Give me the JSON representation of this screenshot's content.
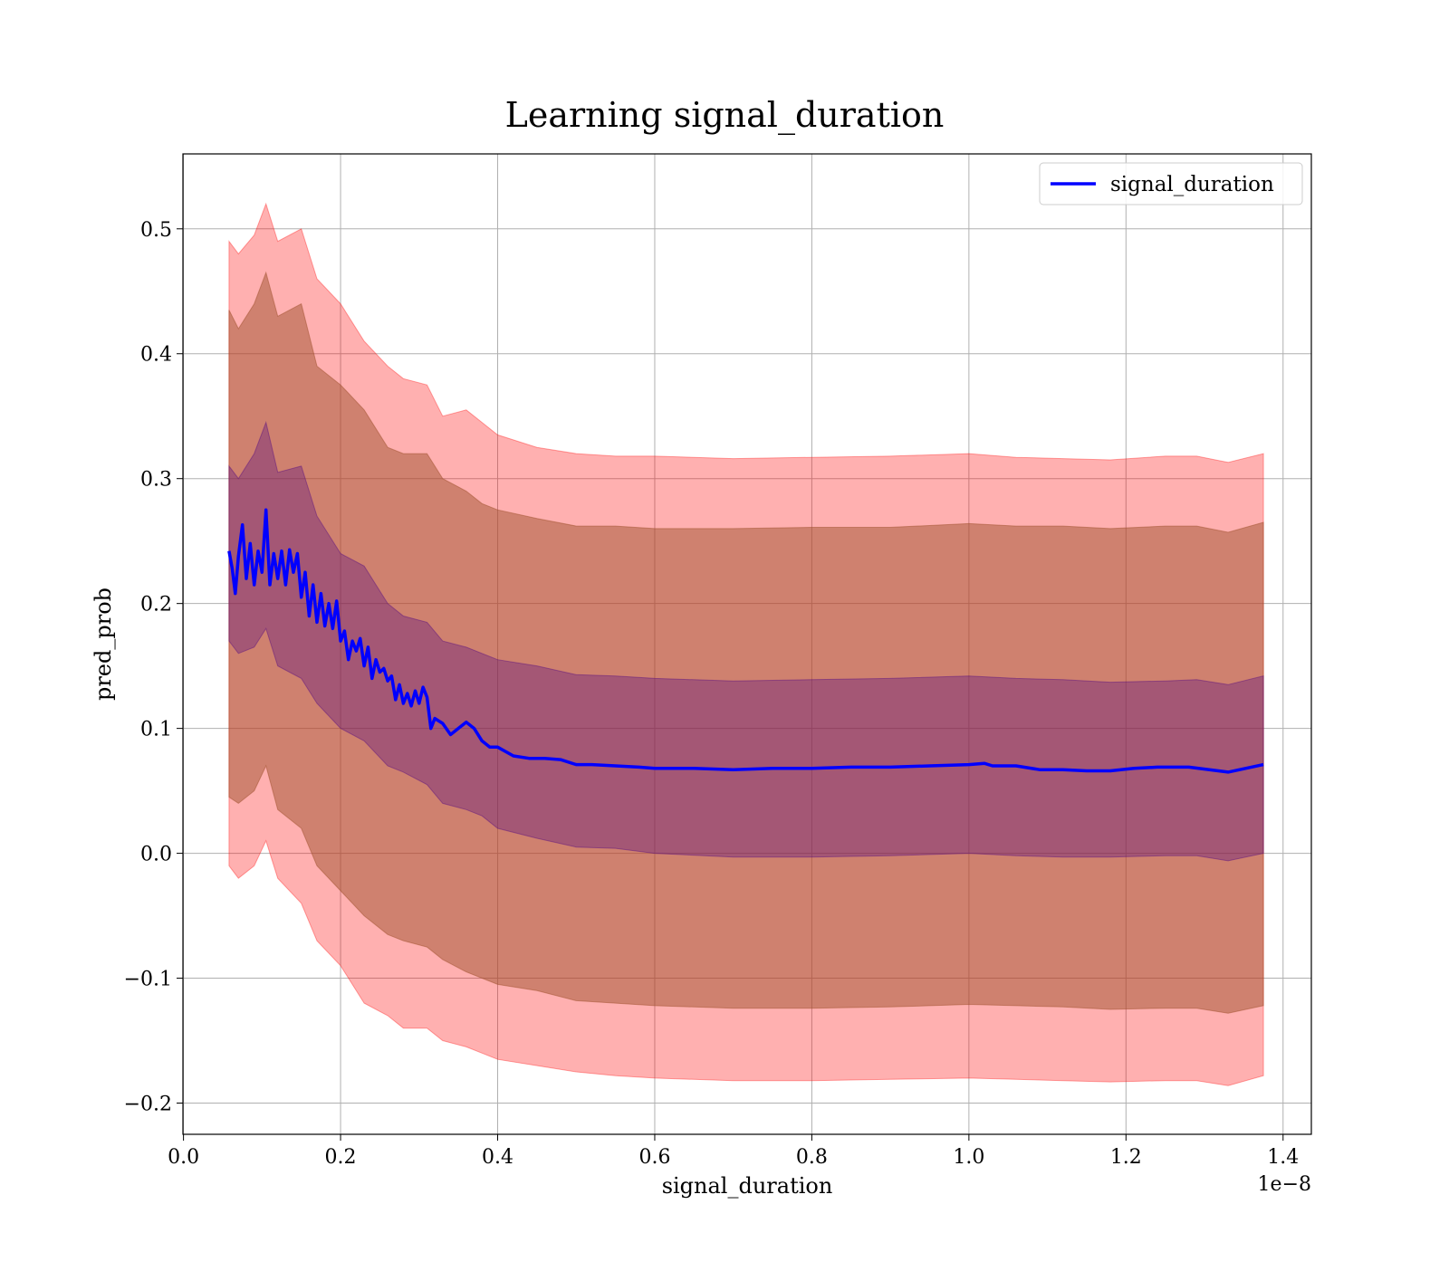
{
  "chart_data": {
    "type": "line",
    "title": "Learning signal_duration",
    "xlabel": "signal_duration",
    "ylabel": "pred_prob",
    "x_offset_label": "1e−8",
    "xlim": [
      -0.0007,
      1.436
    ],
    "ylim": [
      -0.225,
      0.56
    ],
    "grid": true,
    "legend_position": "top-right",
    "x_ticks": [
      0.0,
      0.2,
      0.4,
      0.6,
      0.8,
      1.0,
      1.2,
      1.4
    ],
    "x_tick_labels": [
      "0.0",
      "0.2",
      "0.4",
      "0.6",
      "0.8",
      "1.0",
      "1.2",
      "1.4"
    ],
    "y_ticks": [
      -0.2,
      -0.1,
      0.0,
      0.1,
      0.2,
      0.3,
      0.4,
      0.5
    ],
    "y_tick_labels": [
      "−0.2",
      "−0.1",
      "0.0",
      "0.1",
      "0.2",
      "0.3",
      "0.4",
      "0.5"
    ],
    "colors": {
      "line": "#0000ff",
      "band_2sd": "#ff0000",
      "band_1sd": "#a0522d",
      "band_inner": "#4b0082"
    },
    "series": [
      {
        "name": "signal_duration",
        "x": [
          0.058,
          0.062,
          0.066,
          0.07,
          0.075,
          0.08,
          0.085,
          0.09,
          0.095,
          0.1,
          0.105,
          0.11,
          0.115,
          0.12,
          0.125,
          0.13,
          0.135,
          0.14,
          0.145,
          0.15,
          0.155,
          0.16,
          0.165,
          0.17,
          0.175,
          0.18,
          0.185,
          0.19,
          0.195,
          0.2,
          0.205,
          0.21,
          0.215,
          0.22,
          0.225,
          0.23,
          0.235,
          0.24,
          0.245,
          0.25,
          0.255,
          0.26,
          0.265,
          0.27,
          0.275,
          0.28,
          0.285,
          0.29,
          0.295,
          0.3,
          0.305,
          0.31,
          0.315,
          0.32,
          0.33,
          0.34,
          0.35,
          0.36,
          0.37,
          0.38,
          0.39,
          0.4,
          0.42,
          0.44,
          0.46,
          0.48,
          0.5,
          0.52,
          0.55,
          0.58,
          0.6,
          0.65,
          0.7,
          0.75,
          0.8,
          0.85,
          0.9,
          0.95,
          1.0,
          1.02,
          1.03,
          1.06,
          1.09,
          1.12,
          1.15,
          1.18,
          1.21,
          1.24,
          1.28,
          1.33,
          1.375
        ],
        "y": [
          0.242,
          0.228,
          0.208,
          0.238,
          0.263,
          0.22,
          0.248,
          0.215,
          0.242,
          0.225,
          0.275,
          0.215,
          0.24,
          0.22,
          0.242,
          0.215,
          0.243,
          0.225,
          0.24,
          0.205,
          0.225,
          0.19,
          0.215,
          0.185,
          0.208,
          0.182,
          0.2,
          0.18,
          0.202,
          0.17,
          0.178,
          0.155,
          0.17,
          0.162,
          0.172,
          0.15,
          0.165,
          0.14,
          0.155,
          0.145,
          0.148,
          0.138,
          0.142,
          0.123,
          0.135,
          0.12,
          0.128,
          0.118,
          0.13,
          0.12,
          0.133,
          0.125,
          0.1,
          0.108,
          0.104,
          0.095,
          0.1,
          0.105,
          0.1,
          0.09,
          0.085,
          0.085,
          0.078,
          0.076,
          0.076,
          0.075,
          0.071,
          0.071,
          0.07,
          0.069,
          0.068,
          0.068,
          0.067,
          0.068,
          0.068,
          0.069,
          0.069,
          0.07,
          0.071,
          0.072,
          0.07,
          0.07,
          0.067,
          0.067,
          0.066,
          0.066,
          0.068,
          0.069,
          0.069,
          0.065,
          0.071
        ]
      }
    ],
    "bands": {
      "x": [
        0.058,
        0.07,
        0.09,
        0.105,
        0.12,
        0.15,
        0.17,
        0.2,
        0.23,
        0.26,
        0.28,
        0.31,
        0.33,
        0.36,
        0.38,
        0.4,
        0.45,
        0.5,
        0.55,
        0.6,
        0.7,
        0.8,
        0.9,
        1.0,
        1.06,
        1.12,
        1.18,
        1.25,
        1.29,
        1.33,
        1.375
      ],
      "band_2sd_upper": [
        0.49,
        0.48,
        0.495,
        0.52,
        0.49,
        0.5,
        0.46,
        0.44,
        0.41,
        0.39,
        0.38,
        0.375,
        0.35,
        0.355,
        0.345,
        0.335,
        0.325,
        0.32,
        0.318,
        0.318,
        0.316,
        0.317,
        0.318,
        0.32,
        0.317,
        0.316,
        0.315,
        0.318,
        0.318,
        0.313,
        0.32
      ],
      "band_1sd_upper": [
        0.435,
        0.42,
        0.44,
        0.465,
        0.43,
        0.44,
        0.39,
        0.375,
        0.355,
        0.325,
        0.32,
        0.32,
        0.3,
        0.29,
        0.28,
        0.275,
        0.268,
        0.262,
        0.262,
        0.26,
        0.26,
        0.261,
        0.261,
        0.264,
        0.262,
        0.262,
        0.26,
        0.262,
        0.262,
        0.257,
        0.265
      ],
      "band_inner_upper": [
        0.31,
        0.3,
        0.32,
        0.345,
        0.305,
        0.31,
        0.27,
        0.24,
        0.23,
        0.2,
        0.19,
        0.185,
        0.17,
        0.165,
        0.16,
        0.155,
        0.15,
        0.143,
        0.142,
        0.14,
        0.138,
        0.139,
        0.14,
        0.142,
        0.14,
        0.139,
        0.137,
        0.138,
        0.139,
        0.135,
        0.142
      ],
      "band_inner_lower": [
        0.17,
        0.16,
        0.165,
        0.18,
        0.15,
        0.14,
        0.12,
        0.1,
        0.09,
        0.07,
        0.065,
        0.055,
        0.04,
        0.035,
        0.03,
        0.02,
        0.012,
        0.005,
        0.004,
        0.0,
        -0.003,
        -0.003,
        -0.002,
        0.0,
        -0.002,
        -0.003,
        -0.003,
        -0.002,
        -0.002,
        -0.006,
        0.0
      ],
      "band_1sd_lower": [
        0.045,
        0.04,
        0.05,
        0.07,
        0.035,
        0.02,
        -0.01,
        -0.03,
        -0.05,
        -0.065,
        -0.07,
        -0.075,
        -0.085,
        -0.095,
        -0.1,
        -0.105,
        -0.11,
        -0.118,
        -0.12,
        -0.122,
        -0.124,
        -0.124,
        -0.123,
        -0.121,
        -0.122,
        -0.123,
        -0.125,
        -0.124,
        -0.124,
        -0.128,
        -0.122
      ],
      "band_2sd_lower": [
        -0.01,
        -0.02,
        -0.01,
        0.01,
        -0.02,
        -0.04,
        -0.07,
        -0.09,
        -0.12,
        -0.13,
        -0.14,
        -0.14,
        -0.15,
        -0.155,
        -0.16,
        -0.165,
        -0.17,
        -0.175,
        -0.178,
        -0.18,
        -0.182,
        -0.182,
        -0.181,
        -0.18,
        -0.181,
        -0.182,
        -0.183,
        -0.182,
        -0.182,
        -0.186,
        -0.178
      ]
    }
  }
}
